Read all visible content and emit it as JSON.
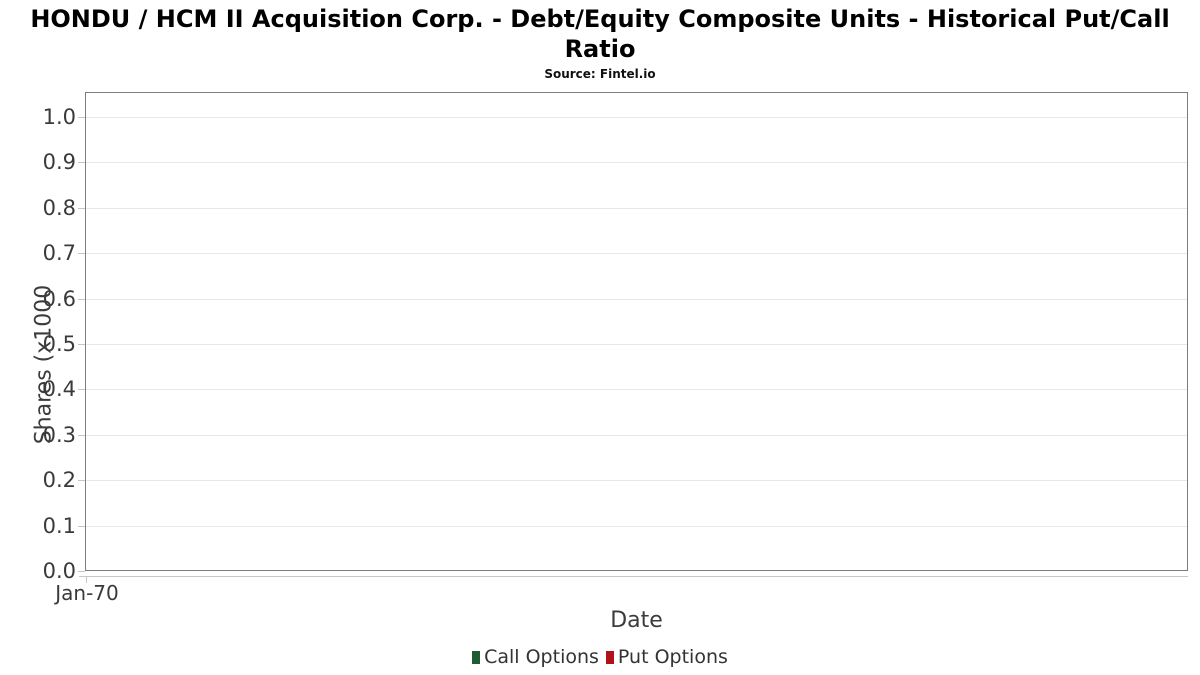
{
  "header": {
    "title_line1": "HONDU / HCM II Acquisition Corp. - Debt/Equity Composite Units - Historical Put/Call",
    "title_line2": "Ratio",
    "subtitle": "Source: Fintel.io"
  },
  "chart_data": {
    "type": "line",
    "title": "HONDU / HCM II Acquisition Corp. - Debt/Equity Composite Units - Historical Put/Call Ratio",
    "subtitle": "Source: Fintel.io",
    "xlabel": "Date",
    "ylabel": "Shares (x1000",
    "x_ticks": [
      "Jan-70"
    ],
    "y_ticks": [
      "0.0",
      "0.1",
      "0.2",
      "0.3",
      "0.4",
      "0.5",
      "0.6",
      "0.7",
      "0.8",
      "0.9",
      "1.0"
    ],
    "ylim": [
      0.0,
      1.055
    ],
    "grid": true,
    "legend_position": "bottom-center",
    "series": [
      {
        "name": "Call Options",
        "color": "#1f5c33",
        "values": []
      },
      {
        "name": "Put Options",
        "color": "#b11217",
        "values": []
      }
    ],
    "colors": {
      "grid": "#e8e8e8",
      "plot_border": "#7d7d7d",
      "tick": "#c6c6c6",
      "text": "#3a3a3a"
    }
  }
}
